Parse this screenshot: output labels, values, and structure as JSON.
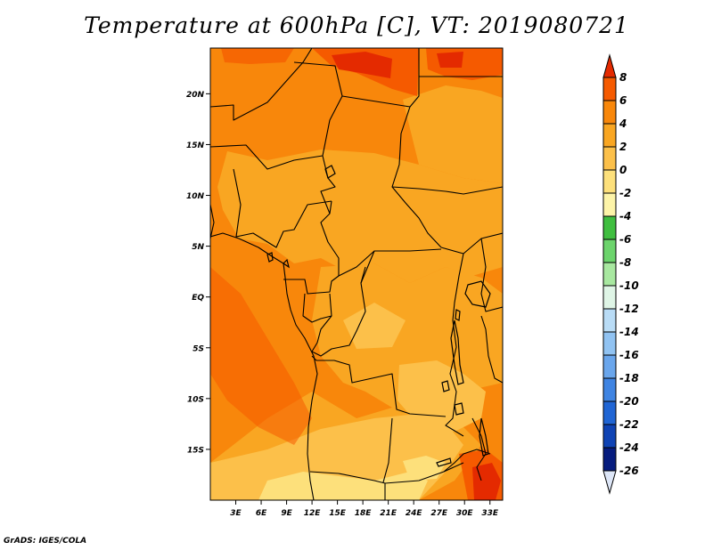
{
  "title": "Temperature at 600hPa [C], VT: 2019080721",
  "credit": "GrADS: IGES/COLA",
  "map": {
    "variable": "Temperature at 600hPa",
    "units": "C",
    "valid_time": "2019080721",
    "lon_range": [
      0,
      34.5
    ],
    "lat_range": [
      -20,
      24.5
    ],
    "lon_ticks": [
      3,
      6,
      9,
      12,
      15,
      18,
      21,
      24,
      27,
      30,
      33
    ],
    "lon_labels": [
      "3E",
      "6E",
      "9E",
      "12E",
      "15E",
      "18E",
      "21E",
      "24E",
      "27E",
      "30E",
      "33E"
    ],
    "lat_ticks": [
      20,
      15,
      10,
      5,
      0,
      -5,
      -10,
      -15
    ],
    "lat_labels": [
      "20N",
      "15N",
      "10N",
      "5N",
      "EQ",
      "5S",
      "10S",
      "15S"
    ]
  },
  "colorbar": {
    "labels": [
      "8",
      "6",
      "4",
      "2",
      "0",
      "-2",
      "-4",
      "-6",
      "-8",
      "-10",
      "-12",
      "-14",
      "-16",
      "-18",
      "-20",
      "-22",
      "-24",
      "-26"
    ],
    "colors": [
      "#e42a00",
      "#f55a00",
      "#f8870b",
      "#f9a622",
      "#fcc04a",
      "#fde07b",
      "#fdf4a8",
      "#3fbe3f",
      "#6cd46c",
      "#a8e8a0",
      "#dff5e6",
      "#b9dcf6",
      "#91c3f2",
      "#6aa6ec",
      "#3f84e2",
      "#2065d4",
      "#0f43b4",
      "#061c7e",
      "#001060"
    ],
    "arrow_bottom_color": "#dde6f7"
  }
}
